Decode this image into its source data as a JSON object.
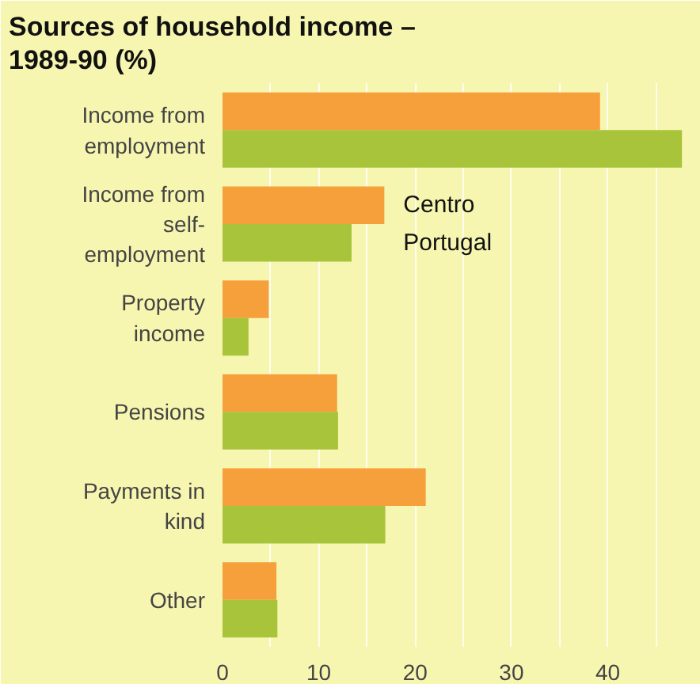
{
  "chart_data": {
    "type": "bar",
    "orientation": "horizontal",
    "title": "Sources of household income – 1989-90 (%)",
    "categories": [
      "Income from employment",
      "Income from self-employment",
      "Property income",
      "Pensions",
      "Payments in kind",
      "Other"
    ],
    "series": [
      {
        "name": "Centro",
        "color": "#f5a03a",
        "values": [
          39.2,
          16.8,
          4.8,
          11.9,
          21.1,
          5.6
        ]
      },
      {
        "name": "Portugal",
        "color": "#a8c43a",
        "values": [
          47.7,
          13.4,
          2.7,
          12,
          16.9,
          5.7
        ]
      }
    ],
    "xlim": [
      0,
      49
    ],
    "xticks": [
      0,
      {
        "value": 5,
        "label": null
      },
      10,
      {
        "value": 15,
        "label": null
      },
      20,
      {
        "value": 25,
        "label": null
      },
      30,
      {
        "value": 35,
        "label": null
      },
      40,
      {
        "value": 45,
        "label": null
      }
    ],
    "grid": "x",
    "legend": "right"
  }
}
